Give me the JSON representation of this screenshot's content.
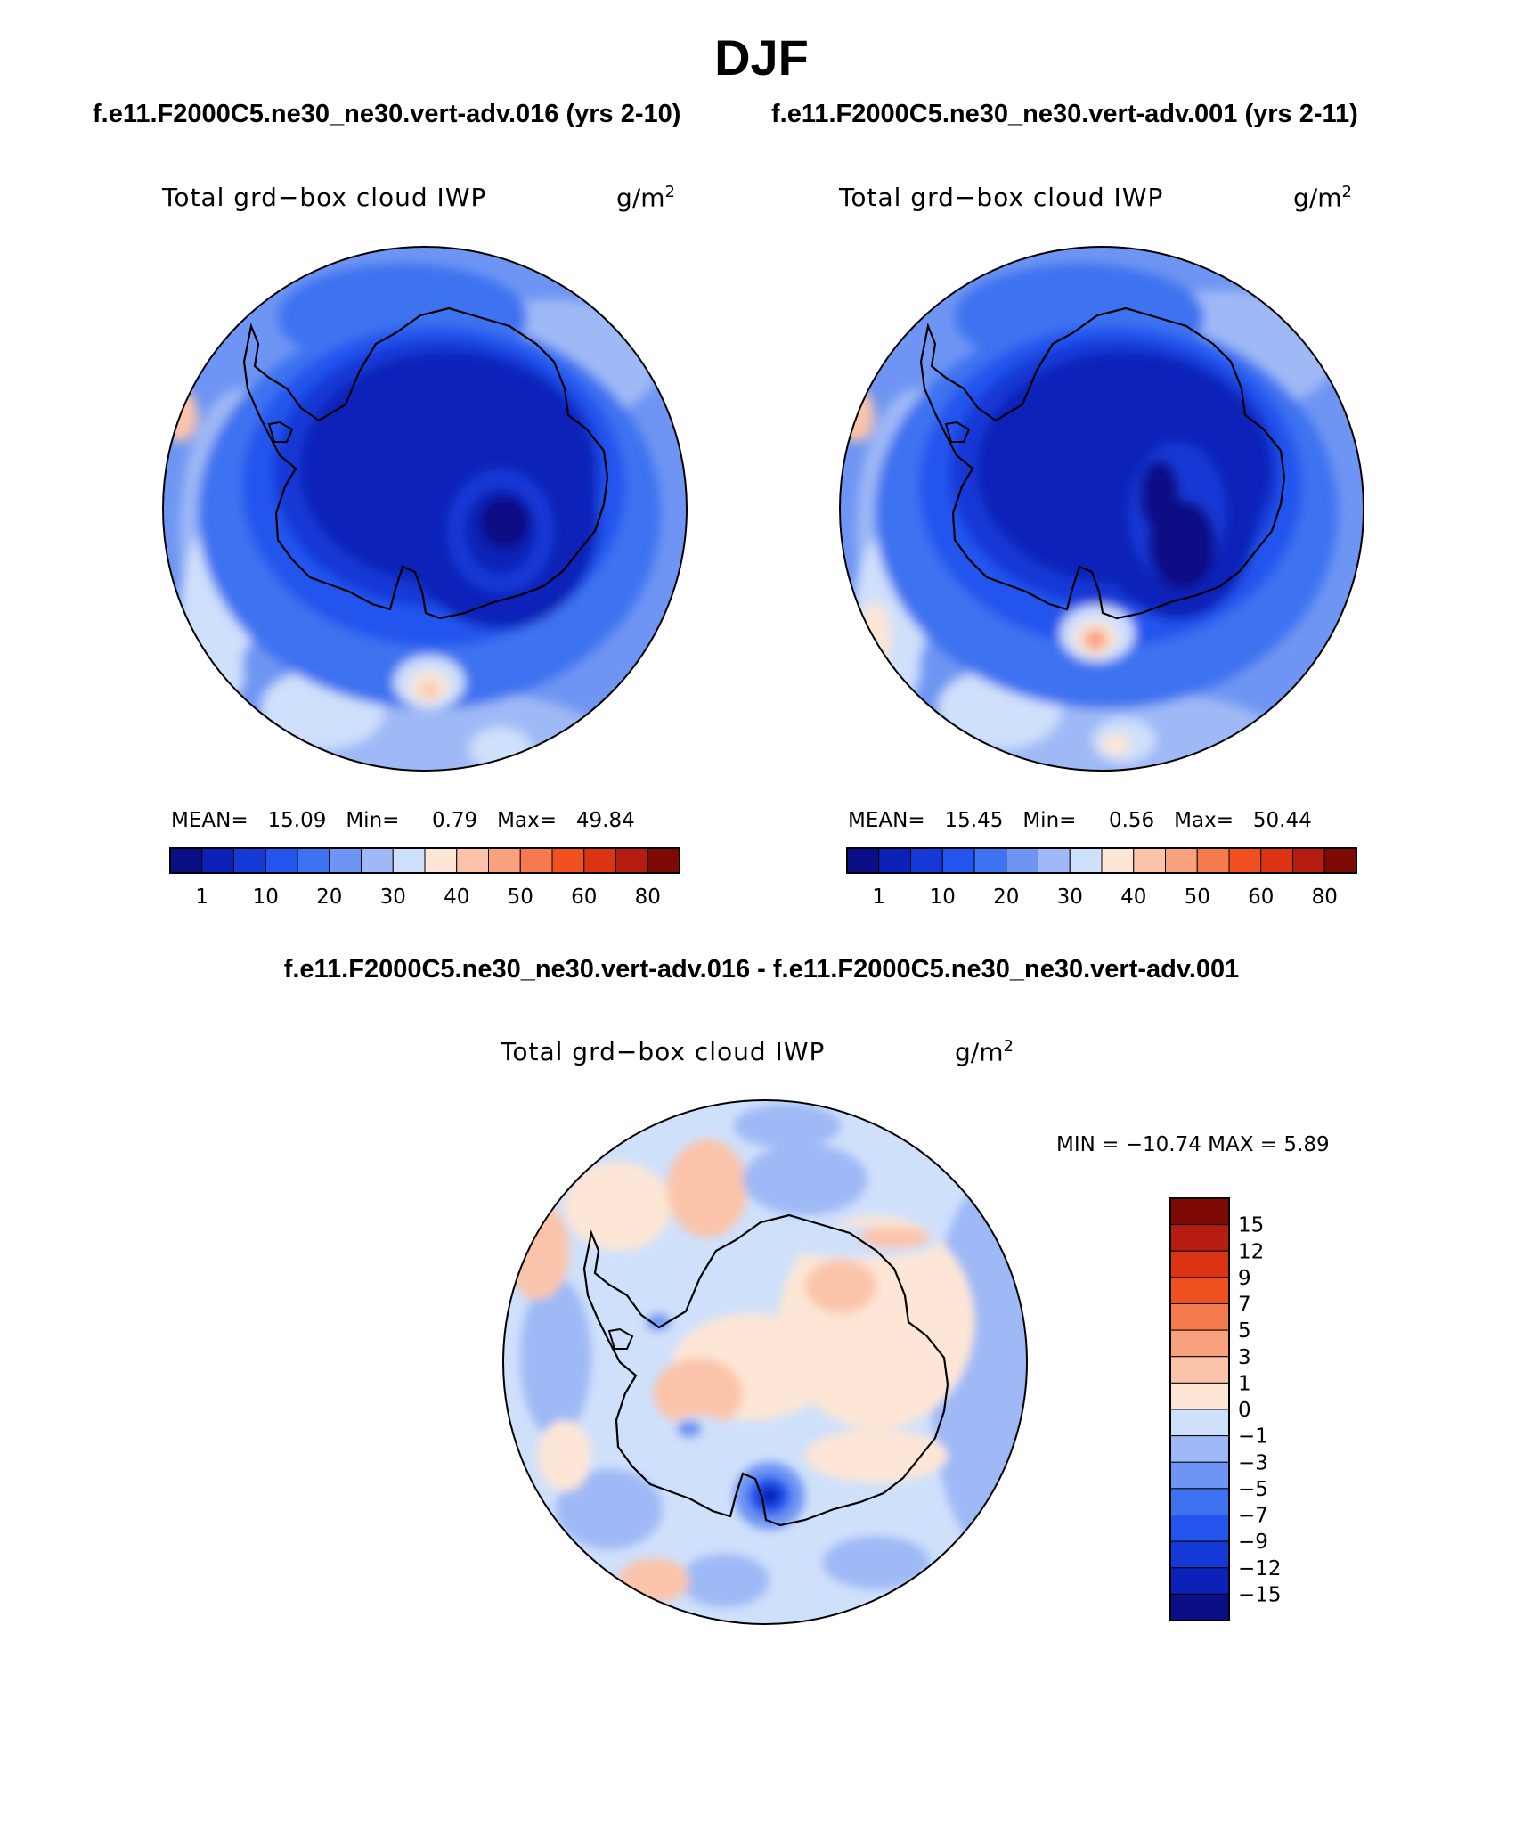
{
  "page": {
    "title": "DJF",
    "case_a_title": "f.e11.F2000C5.ne30_ne30.vert-adv.016 (yrs 2-10)",
    "case_b_title": "f.e11.F2000C5.ne30_ne30.vert-adv.001 (yrs 2-11)",
    "diff_title": "f.e11.F2000C5.ne30_ne30.vert-adv.016 - f.e11.F2000C5.ne30_ne30.vert-adv.001"
  },
  "panels": {
    "left": {
      "variable": "Total grd−box cloud IWP",
      "units_base": "g/m",
      "units_exp": "2",
      "mean_label": "MEAN=",
      "mean_value": "15.09",
      "min_label": "Min=",
      "min_value": "0.79",
      "max_label": "Max=",
      "max_value": "49.84"
    },
    "right": {
      "variable": "Total grd−box cloud IWP",
      "units_base": "g/m",
      "units_exp": "2",
      "mean_label": "MEAN=",
      "mean_value": "15.45",
      "min_label": "Min=",
      "min_value": "0.56",
      "max_label": "Max=",
      "max_value": "50.44"
    },
    "diff": {
      "variable": "Total grd−box cloud IWP",
      "units_base": "g/m",
      "units_exp": "2",
      "minmax": "MIN = −10.74 MAX =    5.89"
    }
  },
  "colorbar_abs": {
    "colors": [
      "#0a0f86",
      "#0b21b8",
      "#1439d6",
      "#2355ee",
      "#3d72f0",
      "#6e95f3",
      "#9fb9f6",
      "#cfe0fb",
      "#fde6d6",
      "#fbc4aa",
      "#f9a07c",
      "#f57a4e",
      "#f0501e",
      "#dc3412",
      "#b61d10",
      "#7e0a06"
    ],
    "labels": [
      "1",
      "10",
      "20",
      "30",
      "40",
      "50",
      "60",
      "80"
    ]
  },
  "colorbar_diff": {
    "colors": [
      "#7e0a06",
      "#b61d10",
      "#dc3412",
      "#f0501e",
      "#f57a4e",
      "#f9a07c",
      "#fbc4aa",
      "#fde6d6",
      "#cfe0fb",
      "#9fb9f6",
      "#6e95f3",
      "#3d72f0",
      "#2355ee",
      "#1439d6",
      "#0b21b8",
      "#0a0f86"
    ],
    "labels": [
      "15",
      "12",
      "9",
      "7",
      "5",
      "3",
      "1",
      "0",
      "−1",
      "−3",
      "−5",
      "−7",
      "−9",
      "−12",
      "−15"
    ]
  }
}
